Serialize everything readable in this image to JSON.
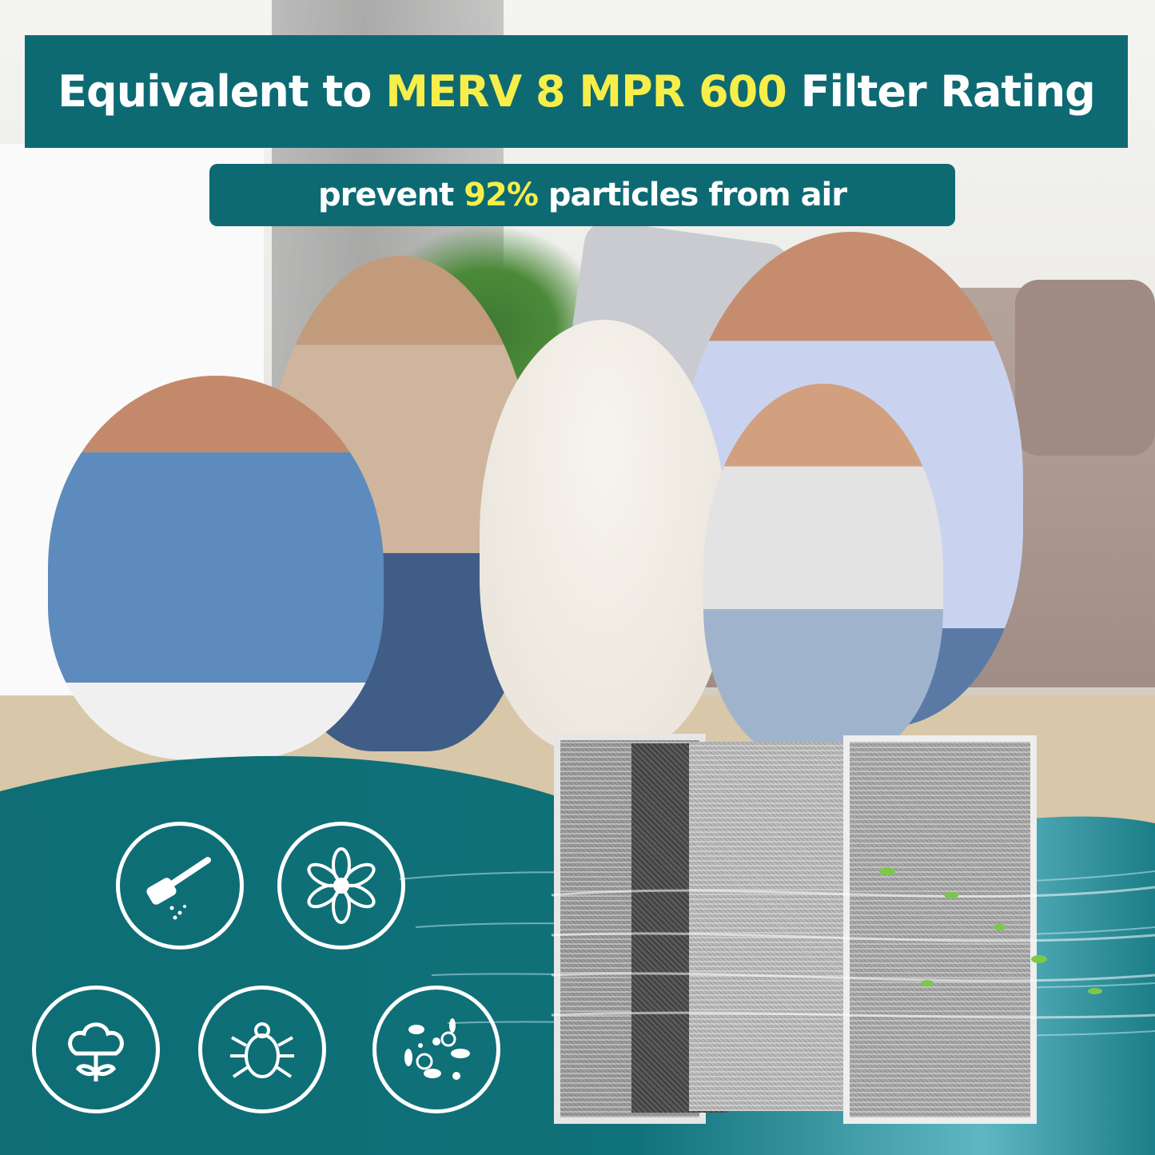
{
  "headline": {
    "prefix": "Equivalent to ",
    "highlight": "MERV 8 MPR 600",
    "suffix": " Filter Rating"
  },
  "subheadline": {
    "prefix": "prevent ",
    "highlight": "92%",
    "suffix": " particles from air"
  },
  "colors": {
    "banner": "#0d6a73",
    "highlight": "#f7ee4a",
    "wave": "#0e6d75",
    "text": "#ffffff"
  },
  "icons": [
    "dust-icon",
    "pollen-flower-icon",
    "cotton-lint-icon",
    "dust-mite-icon",
    "bacteria-icon"
  ]
}
